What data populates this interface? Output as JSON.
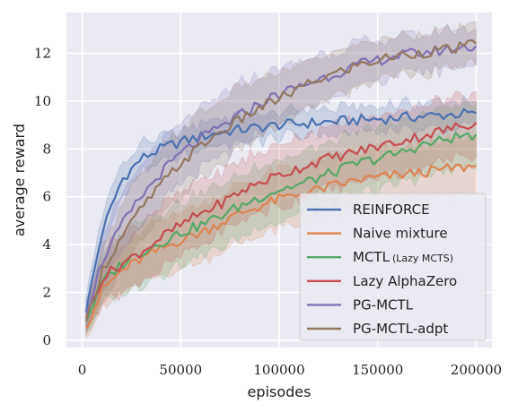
{
  "chart_data": {
    "type": "line",
    "xlabel": "episodes",
    "ylabel": "average reward",
    "xlim": [
      -8000,
      208000
    ],
    "ylim": [
      -0.3,
      13.7
    ],
    "xticks": [
      0,
      50000,
      100000,
      150000,
      200000
    ],
    "yticks": [
      0,
      2,
      4,
      6,
      8,
      10,
      12
    ],
    "grid": true,
    "legend_position": "bottom-right",
    "x": [
      2000,
      10000,
      20000,
      30000,
      40000,
      50000,
      60000,
      70000,
      80000,
      90000,
      100000,
      110000,
      120000,
      130000,
      140000,
      150000,
      160000,
      170000,
      180000,
      190000,
      200000
    ],
    "series": [
      {
        "name": "REINFORCE",
        "color": "#4c72b0",
        "values": [
          1.2,
          4.5,
          6.7,
          7.6,
          8.0,
          8.3,
          8.5,
          8.7,
          8.8,
          8.9,
          9.0,
          9.05,
          9.1,
          9.15,
          9.2,
          9.25,
          9.3,
          9.35,
          9.4,
          9.45,
          9.5
        ],
        "band": [
          0.7,
          0.7,
          0.6,
          0.6,
          0.55,
          0.55,
          0.55,
          0.55,
          0.55,
          0.55,
          0.55,
          0.55,
          0.55,
          0.55,
          0.55,
          0.55,
          0.55,
          0.55,
          0.55,
          0.55,
          0.55
        ]
      },
      {
        "name": "Naive mixture",
        "color": "#dd8452",
        "values": [
          0.5,
          2.1,
          2.9,
          3.4,
          3.8,
          4.2,
          4.5,
          4.9,
          5.3,
          5.6,
          5.9,
          6.1,
          6.3,
          6.5,
          6.7,
          6.8,
          6.9,
          7.0,
          7.1,
          7.2,
          7.3
        ],
        "band": [
          0.5,
          0.8,
          1.0,
          1.1,
          1.2,
          1.2,
          1.2,
          1.2,
          1.2,
          1.2,
          1.2,
          1.2,
          1.2,
          1.2,
          1.2,
          1.2,
          1.2,
          1.2,
          1.2,
          1.2,
          1.2
        ]
      },
      {
        "name": "MCTL",
        "name_suffix": "(Lazy MCTS)",
        "color": "#55a868",
        "values": [
          0.8,
          2.4,
          3.2,
          3.7,
          4.1,
          4.5,
          4.8,
          5.2,
          5.6,
          6.0,
          6.3,
          6.5,
          6.8,
          7.1,
          7.4,
          7.6,
          7.8,
          8.1,
          8.3,
          8.5,
          8.6
        ],
        "band": [
          0.5,
          1.0,
          1.2,
          1.3,
          1.3,
          1.3,
          1.3,
          1.3,
          1.3,
          1.3,
          1.3,
          1.3,
          1.3,
          1.3,
          1.3,
          1.3,
          1.3,
          1.3,
          1.3,
          1.3,
          1.3
        ]
      },
      {
        "name": "Lazy AlphaZero",
        "color": "#c44e52",
        "values": [
          0.9,
          2.6,
          3.2,
          3.7,
          4.3,
          4.8,
          5.3,
          5.7,
          6.2,
          6.6,
          6.9,
          7.2,
          7.5,
          7.7,
          7.9,
          8.1,
          8.3,
          8.5,
          8.7,
          8.9,
          9.1
        ],
        "band": [
          0.5,
          1.0,
          1.2,
          1.3,
          1.3,
          1.3,
          1.3,
          1.3,
          1.3,
          1.3,
          1.3,
          1.3,
          1.3,
          1.3,
          1.3,
          1.3,
          1.3,
          1.3,
          1.3,
          1.3,
          1.3
        ]
      },
      {
        "name": "PG-MCTL",
        "color": "#8172b3",
        "values": [
          1.1,
          3.3,
          4.8,
          6.0,
          7.0,
          7.8,
          8.4,
          8.9,
          9.4,
          9.9,
          10.3,
          10.6,
          10.9,
          11.2,
          11.5,
          11.7,
          11.9,
          12.0,
          12.1,
          12.2,
          12.3
        ],
        "band": [
          0.6,
          1.1,
          1.2,
          1.3,
          1.3,
          1.3,
          1.3,
          1.3,
          1.3,
          1.2,
          1.1,
          1.0,
          1.0,
          0.9,
          0.9,
          0.8,
          0.8,
          0.8,
          0.8,
          0.8,
          0.8
        ]
      },
      {
        "name": "PG-MCTL-adpt",
        "color": "#937860",
        "values": [
          0.8,
          2.9,
          4.3,
          5.5,
          6.5,
          7.4,
          8.1,
          8.7,
          9.2,
          9.7,
          10.1,
          10.5,
          10.9,
          11.2,
          11.5,
          11.7,
          11.9,
          12.0,
          12.1,
          12.2,
          12.4
        ],
        "band": [
          0.5,
          1.1,
          1.3,
          1.4,
          1.4,
          1.4,
          1.4,
          1.3,
          1.3,
          1.2,
          1.1,
          1.0,
          1.0,
          0.9,
          0.9,
          0.8,
          0.8,
          0.8,
          0.8,
          0.8,
          0.8
        ]
      }
    ]
  }
}
